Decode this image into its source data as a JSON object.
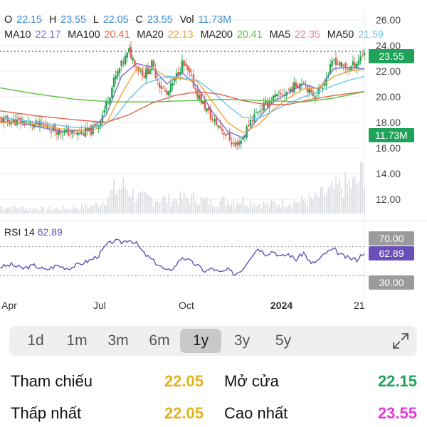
{
  "header": {
    "ohlc": [
      {
        "k": "O",
        "v": "22.15"
      },
      {
        "k": "H",
        "v": "23.55"
      },
      {
        "k": "L",
        "v": "22.05"
      },
      {
        "k": "C",
        "v": "23.55"
      },
      {
        "k": "Vol",
        "v": "11.73M"
      }
    ],
    "ma": [
      {
        "k": "MA10",
        "v": "22.17",
        "color": "#7b6fd0"
      },
      {
        "k": "MA100",
        "v": "20.41",
        "color": "#e0624f"
      },
      {
        "k": "MA20",
        "v": "22.13",
        "color": "#f0a43c"
      },
      {
        "k": "MA200",
        "v": "20.41",
        "color": "#5bbf3e"
      },
      {
        "k": "MA5",
        "v": "22.35",
        "color": "#ee7fa0"
      },
      {
        "k": "MA50",
        "v": "21.59",
        "color": "#6fc5e8"
      }
    ],
    "ohlc_color": "#3d8bd4"
  },
  "rsi": {
    "label": "RSI 14",
    "value": "62.89",
    "level_high": "70.00",
    "level_low": "30.00",
    "line_color": "#6a4fb8"
  },
  "tags": {
    "price": "23.55",
    "volume": "11.73M"
  },
  "colors": {
    "up": "#18a04a",
    "down": "#e25a4a",
    "tag_green": "#1fa35a",
    "tag_gray": "#9b9b9b",
    "tag_purple": "#6a4fb8"
  },
  "chart_data": [
    {
      "type": "candlestick",
      "y_ticks": [
        "26.00",
        "24.00",
        "22.00",
        "20.00",
        "18.00",
        "16.00",
        "14.00",
        "12.00"
      ],
      "ylim": [
        12,
        26
      ],
      "x_ticks": [
        "Apr",
        "Jul",
        "Oct",
        "2024",
        "21"
      ],
      "price_path": [
        [
          0,
          18.2
        ],
        [
          6,
          18.0
        ],
        [
          12,
          17.7
        ],
        [
          16,
          17.3
        ],
        [
          20,
          17.1
        ],
        [
          24,
          17.3
        ],
        [
          26,
          17.9
        ],
        [
          28,
          19.4
        ],
        [
          30,
          21.2
        ],
        [
          32,
          22.5
        ],
        [
          34,
          23.55
        ],
        [
          36,
          22.4
        ],
        [
          38,
          21.7
        ],
        [
          40,
          22.5
        ],
        [
          42,
          21.0
        ],
        [
          44,
          20.1
        ],
        [
          46,
          21.3
        ],
        [
          48,
          22.6
        ],
        [
          50,
          21.7
        ],
        [
          52,
          20.2
        ],
        [
          54,
          19.2
        ],
        [
          56,
          18.2
        ],
        [
          58,
          17.6
        ],
        [
          60,
          16.9
        ],
        [
          62,
          16.1
        ],
        [
          64,
          16.8
        ],
        [
          66,
          18.2
        ],
        [
          68,
          18.9
        ],
        [
          70,
          19.4
        ],
        [
          72,
          19.9
        ],
        [
          74,
          20.1
        ],
        [
          76,
          20.5
        ],
        [
          78,
          20.9
        ],
        [
          80,
          21.3
        ],
        [
          82,
          20.1
        ],
        [
          84,
          20.5
        ],
        [
          86,
          21.5
        ],
        [
          88,
          22.9
        ],
        [
          90,
          22.4
        ],
        [
          92,
          22.2
        ],
        [
          94,
          22.7
        ],
        [
          96,
          23.55
        ]
      ],
      "ma_paths": [
        {
          "name": "MA10",
          "color": "#7b6fd0",
          "points": [
            [
              0,
              18.1
            ],
            [
              8,
              17.8
            ],
            [
              16,
              17.3
            ],
            [
              24,
              17.4
            ],
            [
              28,
              18.6
            ],
            [
              32,
              21.6
            ],
            [
              36,
              22.6
            ],
            [
              40,
              22.3
            ],
            [
              44,
              21.0
            ],
            [
              48,
              21.9
            ],
            [
              52,
              20.8
            ],
            [
              56,
              18.8
            ],
            [
              60,
              17.3
            ],
            [
              64,
              16.8
            ],
            [
              68,
              18.3
            ],
            [
              72,
              19.6
            ],
            [
              76,
              20.3
            ],
            [
              80,
              21.0
            ],
            [
              84,
              20.6
            ],
            [
              88,
              22.2
            ],
            [
              92,
              22.3
            ],
            [
              96,
              22.17
            ]
          ]
        },
        {
          "name": "MA20",
          "color": "#f0a43c",
          "points": [
            [
              0,
              18.0
            ],
            [
              8,
              17.9
            ],
            [
              16,
              17.5
            ],
            [
              24,
              17.3
            ],
            [
              28,
              17.9
            ],
            [
              32,
              20.2
            ],
            [
              36,
              22.2
            ],
            [
              40,
              22.3
            ],
            [
              44,
              21.5
            ],
            [
              48,
              21.4
            ],
            [
              52,
              21.2
            ],
            [
              56,
              19.6
            ],
            [
              60,
              18.0
            ],
            [
              64,
              17.2
            ],
            [
              68,
              17.8
            ],
            [
              72,
              19.0
            ],
            [
              76,
              19.9
            ],
            [
              80,
              20.6
            ],
            [
              84,
              20.7
            ],
            [
              88,
              21.6
            ],
            [
              92,
              22.0
            ],
            [
              96,
              22.13
            ]
          ]
        },
        {
          "name": "MA50",
          "color": "#6fc5e8",
          "points": [
            [
              0,
              18.4
            ],
            [
              10,
              18.0
            ],
            [
              20,
              17.6
            ],
            [
              26,
              17.6
            ],
            [
              30,
              18.3
            ],
            [
              34,
              19.8
            ],
            [
              38,
              21.0
            ],
            [
              44,
              21.6
            ],
            [
              48,
              21.5
            ],
            [
              52,
              21.3
            ],
            [
              56,
              20.4
            ],
            [
              60,
              19.3
            ],
            [
              64,
              18.4
            ],
            [
              68,
              18.3
            ],
            [
              72,
              18.9
            ],
            [
              76,
              19.5
            ],
            [
              80,
              20.0
            ],
            [
              84,
              20.4
            ],
            [
              88,
              20.9
            ],
            [
              92,
              21.3
            ],
            [
              96,
              21.59
            ]
          ]
        },
        {
          "name": "MA100",
          "color": "#e0624f",
          "points": [
            [
              0,
              18.9
            ],
            [
              10,
              18.5
            ],
            [
              20,
              18.2
            ],
            [
              28,
              18.0
            ],
            [
              34,
              18.6
            ],
            [
              40,
              19.5
            ],
            [
              46,
              20.1
            ],
            [
              52,
              20.4
            ],
            [
              58,
              20.2
            ],
            [
              64,
              19.7
            ],
            [
              70,
              19.4
            ],
            [
              76,
              19.4
            ],
            [
              82,
              19.8
            ],
            [
              88,
              20.1
            ],
            [
              96,
              20.41
            ]
          ]
        },
        {
          "name": "MA200",
          "color": "#5bbf3e",
          "points": [
            [
              0,
              20.7
            ],
            [
              10,
              20.2
            ],
            [
              20,
              19.8
            ],
            [
              30,
              19.6
            ],
            [
              40,
              19.6
            ],
            [
              50,
              19.7
            ],
            [
              60,
              19.8
            ],
            [
              70,
              19.7
            ],
            [
              80,
              19.6
            ],
            [
              88,
              19.9
            ],
            [
              96,
              20.41
            ]
          ]
        }
      ],
      "volume_profile": [
        [
          0,
          0.15
        ],
        [
          10,
          0.1
        ],
        [
          20,
          0.12
        ],
        [
          26,
          0.2
        ],
        [
          30,
          0.5
        ],
        [
          33,
          0.6
        ],
        [
          36,
          0.35
        ],
        [
          44,
          0.3
        ],
        [
          50,
          0.35
        ],
        [
          56,
          0.25
        ],
        [
          62,
          0.3
        ],
        [
          70,
          0.2
        ],
        [
          76,
          0.25
        ],
        [
          82,
          0.3
        ],
        [
          86,
          0.45
        ],
        [
          90,
          0.6
        ],
        [
          94,
          0.65
        ],
        [
          96,
          1.0
        ]
      ]
    },
    {
      "type": "line",
      "title": "RSI 14",
      "ylim": [
        0,
        100
      ],
      "levels": [
        70,
        30
      ],
      "points": [
        [
          0,
          42
        ],
        [
          3,
          45
        ],
        [
          6,
          40
        ],
        [
          9,
          44
        ],
        [
          12,
          38
        ],
        [
          15,
          44
        ],
        [
          18,
          40
        ],
        [
          21,
          46
        ],
        [
          24,
          52
        ],
        [
          26,
          58
        ],
        [
          28,
          72
        ],
        [
          30,
          78
        ],
        [
          32,
          76
        ],
        [
          34,
          80
        ],
        [
          36,
          74
        ],
        [
          38,
          60
        ],
        [
          40,
          52
        ],
        [
          42,
          44
        ],
        [
          44,
          36
        ],
        [
          46,
          42
        ],
        [
          48,
          56
        ],
        [
          50,
          50
        ],
        [
          52,
          44
        ],
        [
          54,
          36
        ],
        [
          56,
          40
        ],
        [
          58,
          34
        ],
        [
          60,
          38
        ],
        [
          62,
          32
        ],
        [
          64,
          40
        ],
        [
          66,
          56
        ],
        [
          68,
          68
        ],
        [
          70,
          60
        ],
        [
          72,
          64
        ],
        [
          74,
          56
        ],
        [
          76,
          60
        ],
        [
          78,
          52
        ],
        [
          80,
          62
        ],
        [
          82,
          46
        ],
        [
          84,
          52
        ],
        [
          86,
          62
        ],
        [
          88,
          66
        ],
        [
          90,
          58
        ],
        [
          92,
          54
        ],
        [
          94,
          52
        ],
        [
          96,
          62.89
        ]
      ]
    }
  ],
  "range": {
    "options": [
      "1d",
      "1m",
      "3m",
      "6m",
      "1y",
      "3y",
      "5y"
    ],
    "active": "1y"
  },
  "stats": [
    {
      "label": "Tham chiếu",
      "value": "22.05",
      "color": "#e2b21c"
    },
    {
      "label": "Mở cửa",
      "value": "22.15",
      "color": "#1fa35a"
    },
    {
      "label": "Thấp nhất",
      "value": "22.05",
      "color": "#e2b21c"
    },
    {
      "label": "Cao nhất",
      "value": "23.55",
      "color": "#e23cd8"
    }
  ]
}
